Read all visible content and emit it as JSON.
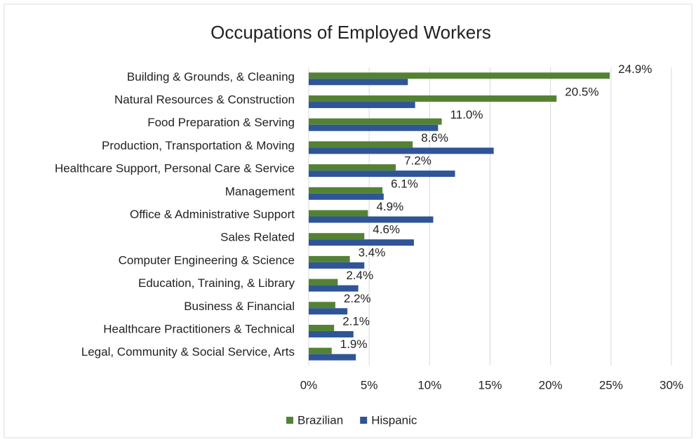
{
  "chart_data": {
    "type": "bar",
    "orientation": "horizontal",
    "title": "Occupations of Employed Workers",
    "categories": [
      "Building & Grounds, & Cleaning",
      "Natural Resources & Construction",
      "Food Preparation & Serving",
      "Production, Transportation & Moving",
      "Healthcare Support, Personal Care & Service",
      "Management",
      "Office & Administrative Support",
      "Sales Related",
      "Computer Engineering & Science",
      "Education, Training, & Library",
      "Business & Financial",
      "Healthcare Practitioners & Technical",
      "Legal, Community & Social Service, Arts"
    ],
    "series": [
      {
        "name": "Brazilian",
        "color": "#548235",
        "values": [
          24.9,
          20.5,
          11.0,
          8.6,
          7.2,
          6.1,
          4.9,
          4.6,
          3.4,
          2.4,
          2.2,
          2.1,
          1.9
        ],
        "value_labels": [
          "24.9%",
          "20.5%",
          "11.0%",
          "8.6%",
          "7.2%",
          "6.1%",
          "4.9%",
          "4.6%",
          "3.4%",
          "2.4%",
          "2.2%",
          "2.1%",
          "1.9%"
        ]
      },
      {
        "name": "Hispanic",
        "color": "#2f5597",
        "values": [
          8.2,
          8.8,
          10.7,
          15.3,
          12.1,
          6.2,
          10.3,
          8.7,
          4.6,
          4.1,
          3.2,
          3.7,
          3.9
        ]
      }
    ],
    "xlim": [
      0,
      30
    ],
    "xticks": [
      {
        "value": 0,
        "label": "0%"
      },
      {
        "value": 5,
        "label": "5%"
      },
      {
        "value": 10,
        "label": "10%"
      },
      {
        "value": 15,
        "label": "15%"
      },
      {
        "value": 20,
        "label": "20%"
      },
      {
        "value": 25,
        "label": "25%"
      },
      {
        "value": 30,
        "label": "30%"
      }
    ],
    "grid": true,
    "legend": "bottom"
  }
}
